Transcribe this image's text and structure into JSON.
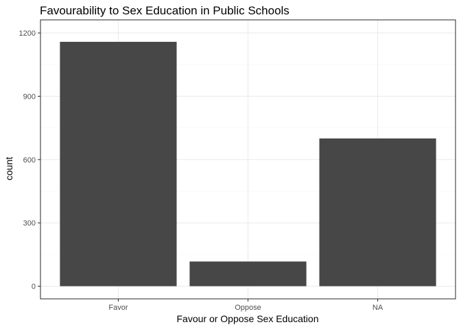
{
  "chart_data": {
    "type": "bar",
    "title": "Favourability to Sex Education in Public Schools",
    "xlabel": "Favour or Oppose Sex Education",
    "ylabel": "count",
    "categories": [
      "Favor",
      "Oppose",
      "NA"
    ],
    "values": [
      1158,
      117,
      700
    ],
    "ylim": [
      -60,
      1262
    ],
    "yticks": [
      0,
      300,
      600,
      900,
      1200
    ],
    "grid": true,
    "bar_color": "#474747",
    "legend": "none"
  }
}
